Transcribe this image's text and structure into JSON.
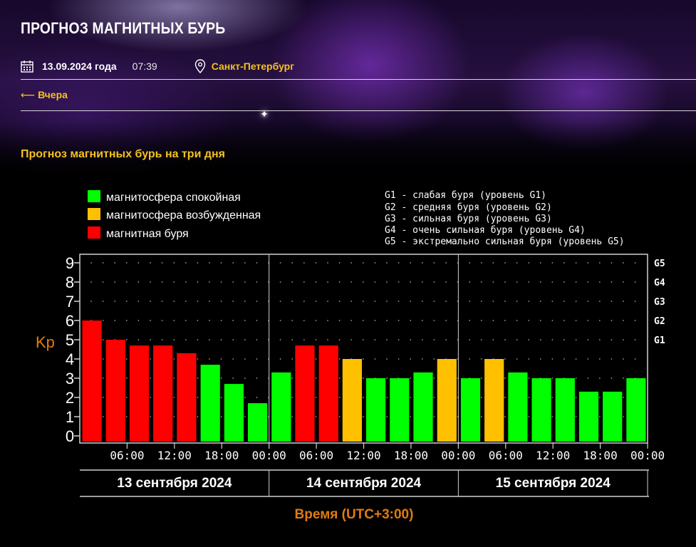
{
  "page": {
    "title": "ПРОГНОЗ МАГНИТНЫХ БУРЬ",
    "date": "13.09.2024 года",
    "time": "07:39",
    "city": "Санкт-Петербург",
    "back_link": "Вчера",
    "section_title": "Прогноз магнитных бурь на три дня"
  },
  "icons": {
    "calendar": "calendar-icon",
    "location": "map-pin-icon",
    "back": "arrow-left-icon"
  },
  "colors": {
    "accent": "#f5c21c",
    "calm": "#00ff00",
    "excited": "#ffc000",
    "storm": "#ff0000",
    "axis_label": "#e07b10"
  },
  "chart_data": {
    "type": "bar",
    "ylabel": "Kp",
    "xlabel": "Время (UTC+3:00)",
    "ylim": [
      0,
      9
    ],
    "yticks": [
      "0",
      "1",
      "2",
      "3",
      "4",
      "5",
      "6",
      "7",
      "8",
      "9"
    ],
    "g_levels": [
      {
        "label": "G1",
        "kp": 5
      },
      {
        "label": "G2",
        "kp": 6
      },
      {
        "label": "G3",
        "kp": 7
      },
      {
        "label": "G4",
        "kp": 8
      },
      {
        "label": "G5",
        "kp": 9
      }
    ],
    "xticks": [
      "06:00",
      "12:00",
      "18:00",
      "00:00",
      "06:00",
      "12:00",
      "18:00",
      "00:00",
      "06:00",
      "12:00",
      "18:00",
      "00:00"
    ],
    "days": [
      "13 сентября 2024",
      "14 сентября 2024",
      "15 сентября 2024"
    ],
    "legend": [
      {
        "label": "магнитосфера спокойная",
        "status": "calm"
      },
      {
        "label": "магнитосфера возбужденная",
        "status": "excited"
      },
      {
        "label": "магнитная буря",
        "status": "storm"
      }
    ],
    "storm_scale": [
      "G1 - слабая буря (уровень G1)",
      "G2 - средняя буря (уровень G2)",
      "G3 - сильная буря (уровень G3)",
      "G4 - очень сильная буря (уровень G4)",
      "G5 - экстремально сильная буря (уровень G5)"
    ],
    "values": [
      6.0,
      5.0,
      4.7,
      4.7,
      4.3,
      3.7,
      2.7,
      1.7,
      3.3,
      4.7,
      4.7,
      4.0,
      3.0,
      3.0,
      3.3,
      4.0,
      3.0,
      4.0,
      3.3,
      3.0,
      3.0,
      2.3,
      2.3,
      3.0
    ],
    "status": [
      "storm",
      "storm",
      "storm",
      "storm",
      "storm",
      "calm",
      "calm",
      "calm",
      "calm",
      "storm",
      "storm",
      "excited",
      "calm",
      "calm",
      "calm",
      "excited",
      "calm",
      "excited",
      "calm",
      "calm",
      "calm",
      "calm",
      "calm",
      "calm"
    ]
  }
}
